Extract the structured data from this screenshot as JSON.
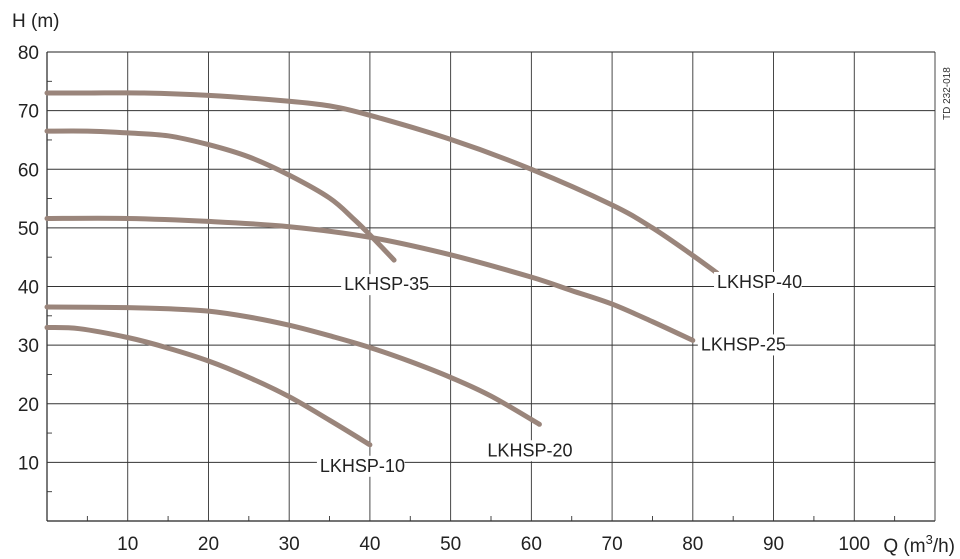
{
  "chart_data": {
    "type": "line",
    "xlabel": "Q (m",
    "xlabel_sup": "3",
    "xlabel_end": "/h)",
    "ylabel": "H (m)",
    "xlim": [
      0,
      110
    ],
    "ylim": [
      0,
      80
    ],
    "x_ticks": [
      10,
      20,
      30,
      40,
      50,
      60,
      70,
      80,
      90,
      100
    ],
    "y_ticks": [
      10,
      20,
      30,
      40,
      50,
      60,
      70,
      80
    ],
    "grid": true,
    "side_note": "TD 232-018",
    "line_color": "#9a857b",
    "series": [
      {
        "name": "LKHSP-10",
        "x": [
          0,
          4,
          10,
          15,
          20,
          25,
          30,
          35,
          40
        ],
        "y": [
          33,
          32.8,
          31.3,
          29.5,
          27.3,
          24.5,
          21.2,
          17.2,
          13
        ]
      },
      {
        "name": "LKHSP-20",
        "x": [
          0,
          10,
          15,
          20,
          25,
          30,
          35,
          40,
          45,
          50,
          55,
          61
        ],
        "y": [
          36.5,
          36.4,
          36.2,
          35.8,
          34.8,
          33.4,
          31.6,
          29.6,
          27.2,
          24.5,
          21.3,
          16.5
        ]
      },
      {
        "name": "LKHSP-25",
        "x": [
          0,
          10,
          20,
          30,
          40,
          50,
          60,
          65,
          70,
          75,
          80
        ],
        "y": [
          51.6,
          51.6,
          51.1,
          50.2,
          48.4,
          45.4,
          41.6,
          39.3,
          37.0,
          34.0,
          30.8
        ]
      },
      {
        "name": "LKHSP-35",
        "x": [
          0,
          5,
          10,
          15,
          20,
          25,
          30,
          35,
          38,
          40,
          43
        ],
        "y": [
          66.5,
          66.5,
          66.2,
          65.7,
          64.2,
          62.1,
          59.0,
          55.1,
          51.5,
          48.8,
          44.5
        ]
      },
      {
        "name": "LKHSP-40",
        "x": [
          0,
          5,
          12,
          20,
          30,
          35,
          40,
          50,
          60,
          70,
          75,
          80,
          83
        ],
        "y": [
          73,
          73,
          73,
          72.6,
          71.6,
          70.8,
          69.2,
          65.1,
          60.0,
          53.9,
          50.0,
          45.3,
          42.3
        ]
      }
    ],
    "labels": [
      {
        "series": "LKHSP-10",
        "text": "LKHSP-10",
        "x": 40,
        "y": 13
      },
      {
        "series": "LKHSP-20",
        "text": "LKHSP-20",
        "x": 61,
        "y": 16.5
      },
      {
        "series": "LKHSP-25",
        "text": "LKHSP-25",
        "x": 80,
        "y": 30.8
      },
      {
        "series": "LKHSP-35",
        "text": "LKHSP-35",
        "x": 43,
        "y": 44.5
      },
      {
        "series": "LKHSP-40",
        "text": "LKHSP-40",
        "x": 83,
        "y": 42.3
      }
    ]
  }
}
